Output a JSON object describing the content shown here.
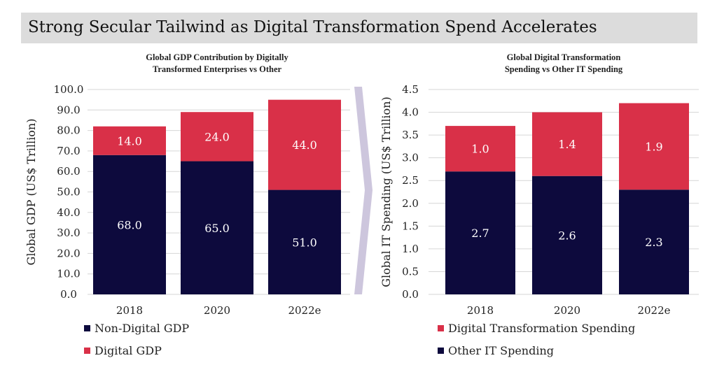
{
  "header": {
    "title": "Strong Secular Tailwind as Digital Transformation Spend Accelerates"
  },
  "colors": {
    "navy": "#0d0a3d",
    "red": "#d93048",
    "banner": "#dcdcdc",
    "arrow": "#cdc6dd",
    "grid": "#d6d6d6"
  },
  "chart_data": [
    {
      "type": "bar",
      "stacked": true,
      "title_lines": [
        "Global GDP Contribution by Digitally",
        "Transformed Enterprises vs Other"
      ],
      "xlabel": "",
      "ylabel": "Global GDP  (US$ Trillion)",
      "ylim": [
        0,
        100
      ],
      "yticks": [
        "0.0",
        "10.0",
        "20.0",
        "30.0",
        "40.0",
        "50.0",
        "60.0",
        "70.0",
        "80.0",
        "90.0",
        "100.0"
      ],
      "grid": true,
      "categories": [
        "2018",
        "2020",
        "2022e"
      ],
      "series": [
        {
          "name": "Non-Digital GDP",
          "values": [
            68.0,
            65.0,
            51.0
          ],
          "labels": [
            "68.0",
            "65.0",
            "51.0"
          ],
          "color": "#0d0a3d"
        },
        {
          "name": "Digital GDP",
          "values": [
            14.0,
            24.0,
            44.0
          ],
          "labels": [
            "14.0",
            "24.0",
            "44.0"
          ],
          "color": "#d93048"
        }
      ],
      "legend_order": [
        "Non-Digital GDP",
        "Digital GDP"
      ],
      "legend_placement": "bottom-left"
    },
    {
      "type": "bar",
      "stacked": true,
      "title_lines": [
        "Global Digital Transformation",
        "Spending vs Other IT Spending"
      ],
      "xlabel": "",
      "ylabel": "Global IT Spending (US$ Trillion)",
      "ylim": [
        0,
        4.5
      ],
      "yticks": [
        "0.0",
        "0.5",
        "1.0",
        "1.5",
        "2.0",
        "2.5",
        "3.0",
        "3.5",
        "4.0",
        "4.5"
      ],
      "grid": true,
      "categories": [
        "2018",
        "2020",
        "2022e"
      ],
      "series": [
        {
          "name": "Other IT Spending",
          "values": [
            2.7,
            2.6,
            2.3
          ],
          "labels": [
            "2.7",
            "2.6",
            "2.3"
          ],
          "color": "#0d0a3d"
        },
        {
          "name": "Digital Transformation Spending",
          "values": [
            1.0,
            1.4,
            1.9
          ],
          "labels": [
            "1.0",
            "1.4",
            "1.9"
          ],
          "color": "#d93048"
        }
      ],
      "legend_order": [
        "Digital Transformation Spending",
        "Other IT Spending"
      ],
      "legend_placement": "bottom-left"
    }
  ]
}
